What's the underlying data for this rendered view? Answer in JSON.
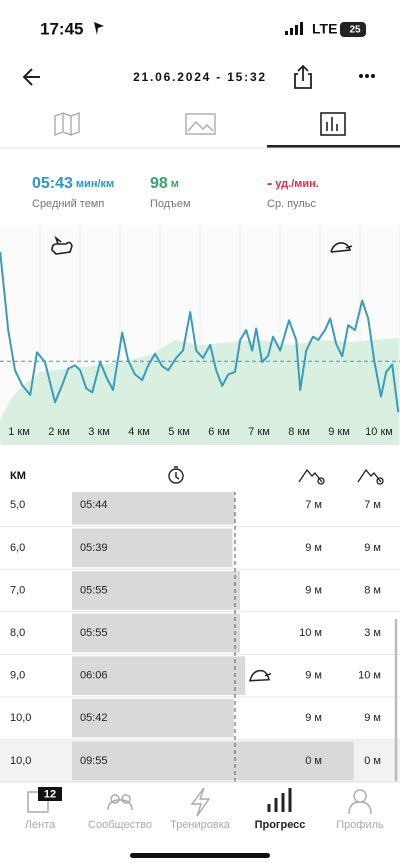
{
  "status_bar": {
    "time": "17:45",
    "network": "LTE",
    "battery": "25"
  },
  "header": {
    "title": "21.06.2024 - 15:32"
  },
  "summary": [
    {
      "value": "05:43",
      "unit": "мин/км",
      "label": "Средний темп",
      "color": "#2f97c4"
    },
    {
      "value": "98",
      "unit": "м",
      "label": "Подъем",
      "color": "#35a46a"
    },
    {
      "value": "-",
      "unit": "уд./мин.",
      "label": "Ср. пульс",
      "color": "#d6304a"
    }
  ],
  "chart_data": {
    "type": "line",
    "color": "#3b9bbf",
    "grid": true,
    "x": [
      0.53,
      0.73,
      0.9,
      1.08,
      1.28,
      1.45,
      1.65,
      1.9,
      2.08,
      2.23,
      2.4,
      2.53,
      2.68,
      2.83,
      3.03,
      3.2,
      3.35,
      3.58,
      3.73,
      3.9,
      4.08,
      4.23,
      4.4,
      4.58,
      4.73,
      4.93,
      5.1,
      5.28,
      5.43,
      5.6,
      5.78,
      5.93,
      6.08,
      6.23,
      6.4,
      6.53,
      6.68,
      6.83,
      6.93,
      7.08,
      7.23,
      7.35,
      7.53,
      7.75,
      7.93,
      8.03,
      8.18,
      8.35,
      8.48,
      8.65,
      8.78,
      8.93,
      9.08,
      9.23,
      9.4,
      9.58,
      9.73,
      9.88,
      10.05,
      10.18,
      10.33,
      10.48
    ],
    "values": [
      7.05,
      6.1,
      5.61,
      5.43,
      5.31,
      5.83,
      5.71,
      5.22,
      5.43,
      5.63,
      5.67,
      5.61,
      5.39,
      5.34,
      5.71,
      5.51,
      5.37,
      6.07,
      5.73,
      5.56,
      5.49,
      5.67,
      5.81,
      5.66,
      5.61,
      5.76,
      5.85,
      6.32,
      5.85,
      5.76,
      5.92,
      5.61,
      5.42,
      5.56,
      5.59,
      5.98,
      6.1,
      5.85,
      6.12,
      5.71,
      5.79,
      6.02,
      5.85,
      6.22,
      5.98,
      5.37,
      5.85,
      6.02,
      5.98,
      6.1,
      6.24,
      5.93,
      5.78,
      6.16,
      6.1,
      6.46,
      6.24,
      5.73,
      5.29,
      5.59,
      5.68,
      5.1
    ],
    "average": 5.72,
    "xlim": [
      0.525,
      10.525
    ],
    "ylim": [
      4.7,
      7.38
    ],
    "xticks": [
      {
        "value": 1,
        "label": "1 км"
      },
      {
        "value": 2,
        "label": "2 км"
      },
      {
        "value": 3,
        "label": "3 км"
      },
      {
        "value": 4,
        "label": "4 км"
      },
      {
        "value": 5,
        "label": "5 км"
      },
      {
        "value": 6,
        "label": "6 км"
      },
      {
        "value": 7,
        "label": "7 км"
      },
      {
        "value": 8,
        "label": "8 км"
      },
      {
        "value": 9,
        "label": "9 км"
      },
      {
        "value": 10,
        "label": "10 км"
      }
    ],
    "area": {
      "color": "#d9efe0",
      "x": [
        0.53,
        0.78,
        1.03,
        1.53,
        2.28,
        3.03,
        3.78,
        4.28,
        4.9,
        5.53,
        6.28,
        7.03,
        7.78,
        8.53,
        9.28,
        10.5
      ],
      "values": [
        13.6,
        24.5,
        31.1,
        39.8,
        42,
        43.6,
        46.4,
        49.1,
        57.3,
        54.5,
        56.2,
        57.3,
        54.5,
        57.3,
        56.2,
        58.4
      ],
      "ylim": [
        0,
        120
      ]
    }
  },
  "splits": {
    "header": "КМ",
    "rows": [
      [
        "5,0",
        "05:44",
        "7 м",
        "7 м"
      ],
      [
        "6,0",
        "05:39",
        "9 м",
        "9 м"
      ],
      [
        "7,0",
        "05:55",
        "9 м",
        "8 м"
      ],
      [
        "8,0",
        "05:55",
        "10 м",
        "3 м"
      ],
      [
        "9,0",
        "06:06",
        "9 м",
        "10 м"
      ],
      [
        "10,0",
        "05:42",
        "9 м",
        "9 м"
      ],
      [
        "10,0",
        "09:55",
        "0 м",
        "0 м"
      ]
    ]
  },
  "tab_bar": {
    "items": [
      {
        "label": "Лента",
        "badge": "12"
      },
      {
        "label": "Сообщество"
      },
      {
        "label": "Тренировка"
      },
      {
        "label": "Прогресс"
      },
      {
        "label": "Профиль"
      }
    ],
    "active": 3
  }
}
